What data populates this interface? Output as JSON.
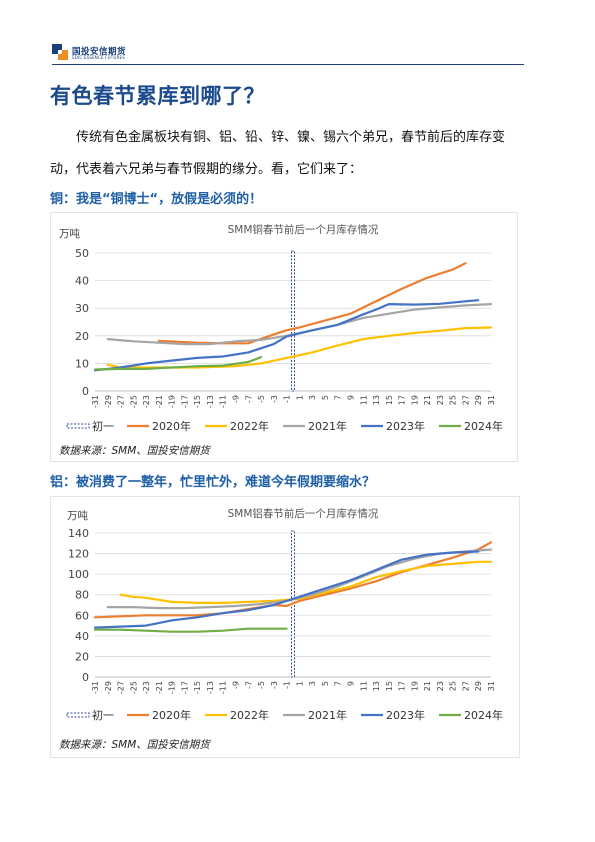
{
  "header": {
    "logo_cn": "国投安信期货",
    "logo_en": "SDIC ESSENCE FUTURES"
  },
  "title": "有色春节累库到哪了？",
  "intro": "传统有色金属板块有铜、铝、铅、锌、镍、锡六个弟兄，春节前后的库存变动，代表着六兄弟与春节假期的缘分。看，它们来了：",
  "sections": [
    {
      "heading": "铜：我是“铜博士“，放假是必须的！"
    },
    {
      "heading": "铝：被消费了一整年，忙里忙外，难道今年假期要缩水？"
    }
  ],
  "colors": {
    "2020年": "#ed7d31",
    "2022年": "#ffc000",
    "2021年": "#a5a5a5",
    "2023年": "#4472c4",
    "2024年": "#70ad47",
    "初一": "#2f4f9f"
  },
  "chart_data": [
    {
      "type": "line",
      "title": "SMM铜春节前后一个月库存情况",
      "ylabel": "万吨",
      "ylim": [
        0,
        50
      ],
      "yticks": [
        0,
        10,
        20,
        30,
        40,
        50
      ],
      "x": [
        -31,
        -29,
        -27,
        -25,
        -23,
        -21,
        -19,
        -17,
        -15,
        -13,
        -11,
        -9,
        -7,
        -5,
        -3,
        -1,
        1,
        3,
        5,
        7,
        9,
        11,
        13,
        15,
        17,
        19,
        21,
        23,
        25,
        27,
        29,
        31
      ],
      "xlim": [
        -31,
        31
      ],
      "marker_day": 0,
      "legend": [
        "初一",
        "2020年",
        "2022年",
        "2021年",
        "2023年",
        "2024年"
      ],
      "legend_position": "bottom",
      "source": "数据来源：SMM、国投安信期货",
      "series": [
        {
          "name": "2020年",
          "points": [
            [
              -21,
              18.2
            ],
            [
              -15,
              17.5
            ],
            [
              -11,
              17.3
            ],
            [
              -7,
              17.3
            ],
            [
              -3,
              20.5
            ],
            [
              -1,
              22
            ],
            [
              1,
              23
            ],
            [
              5,
              25.5
            ],
            [
              9,
              28
            ],
            [
              13,
              32.5
            ],
            [
              17,
              37
            ],
            [
              21,
              41
            ],
            [
              25,
              44
            ],
            [
              27,
              46.3
            ]
          ]
        },
        {
          "name": "2022年",
          "points": [
            [
              -29,
              9.5
            ],
            [
              -27,
              8.5
            ],
            [
              -25,
              8.5
            ],
            [
              -21,
              8.5
            ],
            [
              -15,
              8.5
            ],
            [
              -9,
              9
            ],
            [
              -5,
              10
            ],
            [
              -1,
              12
            ],
            [
              3,
              14
            ],
            [
              7,
              16.5
            ],
            [
              11,
              18.8
            ],
            [
              15,
              20
            ],
            [
              19,
              21
            ],
            [
              23,
              21.8
            ],
            [
              27,
              22.8
            ],
            [
              31,
              23
            ]
          ]
        },
        {
          "name": "2021年",
          "points": [
            [
              -29,
              18.8
            ],
            [
              -25,
              18
            ],
            [
              -21,
              17.5
            ],
            [
              -17,
              17
            ],
            [
              -13,
              17
            ],
            [
              -9,
              18
            ],
            [
              -5,
              18.5
            ],
            [
              -1,
              20
            ],
            [
              3,
              22
            ],
            [
              7,
              24
            ],
            [
              11,
              26.5
            ],
            [
              15,
              28
            ],
            [
              19,
              29.5
            ],
            [
              23,
              30.3
            ],
            [
              27,
              31
            ],
            [
              31,
              31.5
            ]
          ]
        },
        {
          "name": "2023年",
          "points": [
            [
              -31,
              7.5
            ],
            [
              -27,
              8.5
            ],
            [
              -23,
              10
            ],
            [
              -19,
              11
            ],
            [
              -15,
              12
            ],
            [
              -11,
              12.5
            ],
            [
              -7,
              14
            ],
            [
              -3,
              17
            ],
            [
              -1,
              19.8
            ],
            [
              3,
              22
            ],
            [
              7,
              24
            ],
            [
              11,
              27.8
            ],
            [
              13,
              29.5
            ],
            [
              15,
              31.5
            ],
            [
              19,
              31.3
            ],
            [
              23,
              31.6
            ],
            [
              27,
              32.5
            ],
            [
              29,
              32.9
            ]
          ]
        },
        {
          "name": "2024年",
          "points": [
            [
              -31,
              7.8
            ],
            [
              -27,
              8
            ],
            [
              -23,
              8
            ],
            [
              -19,
              8.5
            ],
            [
              -15,
              9
            ],
            [
              -11,
              9.2
            ],
            [
              -7,
              10.5
            ],
            [
              -5,
              12.3
            ]
          ]
        }
      ]
    },
    {
      "type": "line",
      "title": "SMM铝春节前后一个月库存情况",
      "ylabel": "万吨",
      "ylim": [
        0,
        140
      ],
      "yticks": [
        0,
        20,
        40,
        60,
        80,
        100,
        120,
        140
      ],
      "x": [
        -31,
        -29,
        -27,
        -25,
        -23,
        -21,
        -19,
        -17,
        -15,
        -13,
        -11,
        -9,
        -7,
        -5,
        -3,
        -1,
        1,
        3,
        5,
        7,
        9,
        11,
        13,
        15,
        17,
        19,
        21,
        23,
        25,
        27,
        29,
        31
      ],
      "xlim": [
        -31,
        31
      ],
      "marker_day": 0,
      "legend": [
        "初一",
        "2020年",
        "2022年",
        "2021年",
        "2023年",
        "2024年"
      ],
      "legend_position": "bottom",
      "source": "数据来源：SMM、国投安信期货",
      "series": [
        {
          "name": "2020年",
          "points": [
            [
              -31,
              58
            ],
            [
              -27,
              59
            ],
            [
              -23,
              60
            ],
            [
              -19,
              60
            ],
            [
              -15,
              60
            ],
            [
              -11,
              62
            ],
            [
              -7,
              66
            ],
            [
              -3,
              70
            ],
            [
              -1,
              69
            ],
            [
              1,
              74
            ],
            [
              5,
              80
            ],
            [
              9,
              86
            ],
            [
              13,
              93
            ],
            [
              17,
              102
            ],
            [
              21,
              109
            ],
            [
              25,
              116
            ],
            [
              29,
              124
            ],
            [
              31,
              131
            ]
          ]
        },
        {
          "name": "2022年",
          "points": [
            [
              -27,
              80
            ],
            [
              -25,
              78
            ],
            [
              -23,
              77
            ],
            [
              -19,
              73
            ],
            [
              -15,
              72
            ],
            [
              -11,
              72
            ],
            [
              -7,
              73
            ],
            [
              -3,
              74
            ],
            [
              1,
              76
            ],
            [
              5,
              82
            ],
            [
              9,
              88
            ],
            [
              13,
              97
            ],
            [
              17,
              103
            ],
            [
              21,
              108
            ],
            [
              25,
              110
            ],
            [
              29,
              112
            ],
            [
              31,
              112
            ]
          ]
        },
        {
          "name": "2021年",
          "points": [
            [
              -29,
              68
            ],
            [
              -25,
              68
            ],
            [
              -21,
              67
            ],
            [
              -17,
              67
            ],
            [
              -13,
              68
            ],
            [
              -9,
              69
            ],
            [
              -5,
              71
            ],
            [
              -1,
              74
            ],
            [
              3,
              80
            ],
            [
              7,
              88
            ],
            [
              11,
              98
            ],
            [
              15,
              108
            ],
            [
              19,
              115
            ],
            [
              23,
              120
            ],
            [
              27,
              122
            ],
            [
              31,
              124
            ]
          ]
        },
        {
          "name": "2023年",
          "points": [
            [
              -31,
              48
            ],
            [
              -27,
              49
            ],
            [
              -23,
              50
            ],
            [
              -19,
              55
            ],
            [
              -15,
              58
            ],
            [
              -11,
              62
            ],
            [
              -7,
              65
            ],
            [
              -3,
              70
            ],
            [
              1,
              78
            ],
            [
              5,
              86
            ],
            [
              9,
              94
            ],
            [
              13,
              104
            ],
            [
              17,
              114
            ],
            [
              21,
              119
            ],
            [
              25,
              121
            ],
            [
              29,
              122
            ]
          ]
        },
        {
          "name": "2024年",
          "points": [
            [
              -31,
              46
            ],
            [
              -27,
              46
            ],
            [
              -23,
              45
            ],
            [
              -19,
              44
            ],
            [
              -15,
              44
            ],
            [
              -11,
              45
            ],
            [
              -9,
              46
            ],
            [
              -7,
              47
            ],
            [
              -3,
              47
            ],
            [
              -1,
              47
            ]
          ]
        }
      ]
    }
  ]
}
